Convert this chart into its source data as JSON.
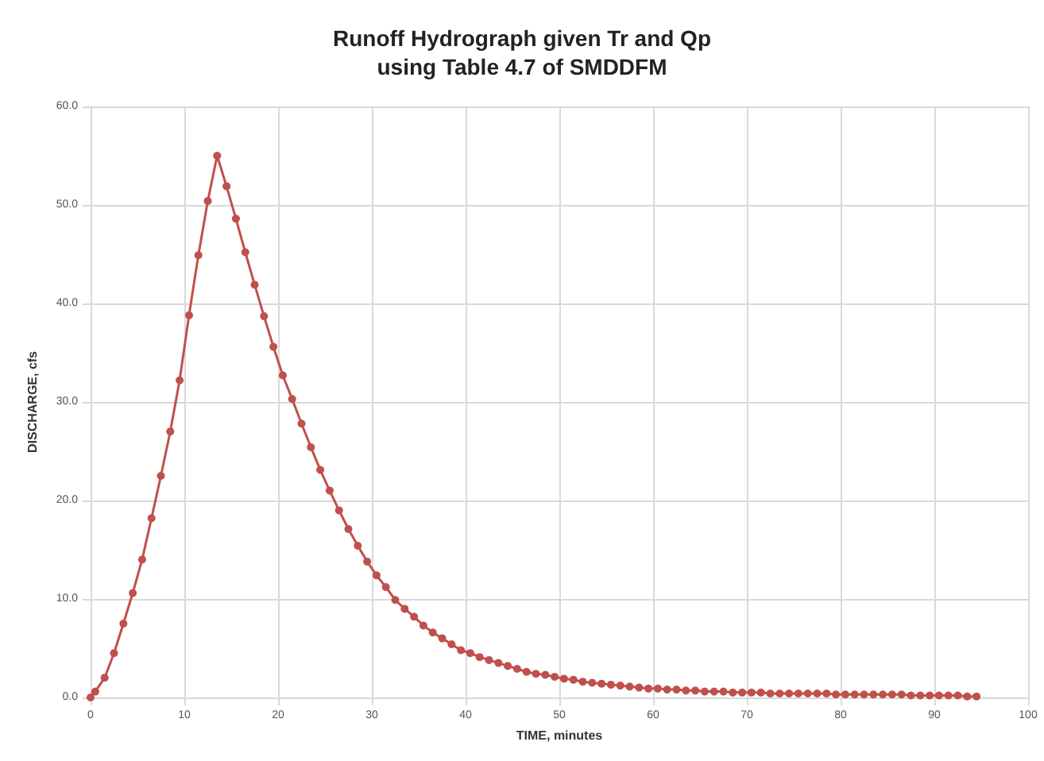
{
  "chart_data": {
    "type": "line",
    "title": "Runoff Hydrograph given Tr and Qp\nusing Table 4.7 of SMDDFM",
    "xlabel": "TIME, minutes",
    "ylabel": "DISCHARGE, cfs",
    "x": [
      0,
      0.5,
      1.5,
      2.5,
      3.5,
      4.5,
      5.5,
      6.5,
      7.5,
      8.5,
      9.5,
      10.5,
      11.5,
      12.5,
      13.5,
      14.5,
      15.5,
      16.5,
      17.5,
      18.5,
      19.5,
      20.5,
      21.5,
      22.5,
      23.5,
      24.5,
      25.5,
      26.5,
      27.5,
      28.5,
      29.5,
      30.5,
      31.5,
      32.5,
      33.5,
      34.5,
      35.5,
      36.5,
      37.5,
      38.5,
      39.5,
      40.5,
      41.5,
      42.5,
      43.5,
      44.5,
      45.5,
      46.5,
      47.5,
      48.5,
      49.5,
      50.5,
      51.5,
      52.5,
      53.5,
      54.5,
      55.5,
      56.5,
      57.5,
      58.5,
      59.5,
      60.5,
      61.5,
      62.5,
      63.5,
      64.5,
      65.5,
      66.5,
      67.5,
      68.5,
      69.5,
      70.5,
      71.5,
      72.5,
      73.5,
      74.5,
      75.5,
      76.5,
      77.5,
      78.5,
      79.5,
      80.5,
      81.5,
      82.5,
      83.5,
      84.5,
      85.5,
      86.5,
      87.5,
      88.5,
      89.5,
      90.5,
      91.5,
      92.5,
      93.5,
      94.5
    ],
    "series": [
      {
        "color": "#c0504d",
        "values": [
          0,
          0.6,
          2.0,
          4.5,
          7.5,
          10.6,
          14.0,
          18.2,
          22.5,
          27.0,
          32.2,
          38.8,
          44.9,
          50.4,
          55.0,
          51.9,
          48.6,
          45.2,
          41.9,
          38.7,
          35.6,
          32.7,
          30.3,
          27.8,
          25.4,
          23.1,
          21.0,
          19.0,
          17.1,
          15.4,
          13.8,
          12.4,
          11.2,
          9.9,
          9.0,
          8.2,
          7.3,
          6.6,
          6.0,
          5.4,
          4.8,
          4.5,
          4.1,
          3.8,
          3.5,
          3.2,
          2.9,
          2.6,
          2.4,
          2.3,
          2.1,
          1.9,
          1.8,
          1.6,
          1.5,
          1.4,
          1.3,
          1.2,
          1.1,
          1.0,
          0.9,
          0.9,
          0.8,
          0.8,
          0.7,
          0.7,
          0.6,
          0.6,
          0.6,
          0.5,
          0.5,
          0.5,
          0.5,
          0.4,
          0.4,
          0.4,
          0.4,
          0.4,
          0.4,
          0.4,
          0.3,
          0.3,
          0.3,
          0.3,
          0.3,
          0.3,
          0.3,
          0.3,
          0.2,
          0.2,
          0.2,
          0.2,
          0.2,
          0.2,
          0.1,
          0.1
        ]
      }
    ],
    "xlim": [
      0,
      100
    ],
    "xticks": [
      0,
      10,
      20,
      30,
      40,
      50,
      60,
      70,
      80,
      90,
      100
    ],
    "ylim": [
      0,
      60
    ],
    "yticks": [
      {
        "value": 0,
        "label": "0.0"
      },
      {
        "value": 10,
        "label": "10.0"
      },
      {
        "value": 20,
        "label": "20.0"
      },
      {
        "value": 30,
        "label": "30.0"
      },
      {
        "value": 40,
        "label": "40.0"
      },
      {
        "value": 50,
        "label": "50.0"
      },
      {
        "value": 60,
        "label": "60.0"
      }
    ],
    "grid": true,
    "marker": "circle",
    "line_style": "solid"
  }
}
